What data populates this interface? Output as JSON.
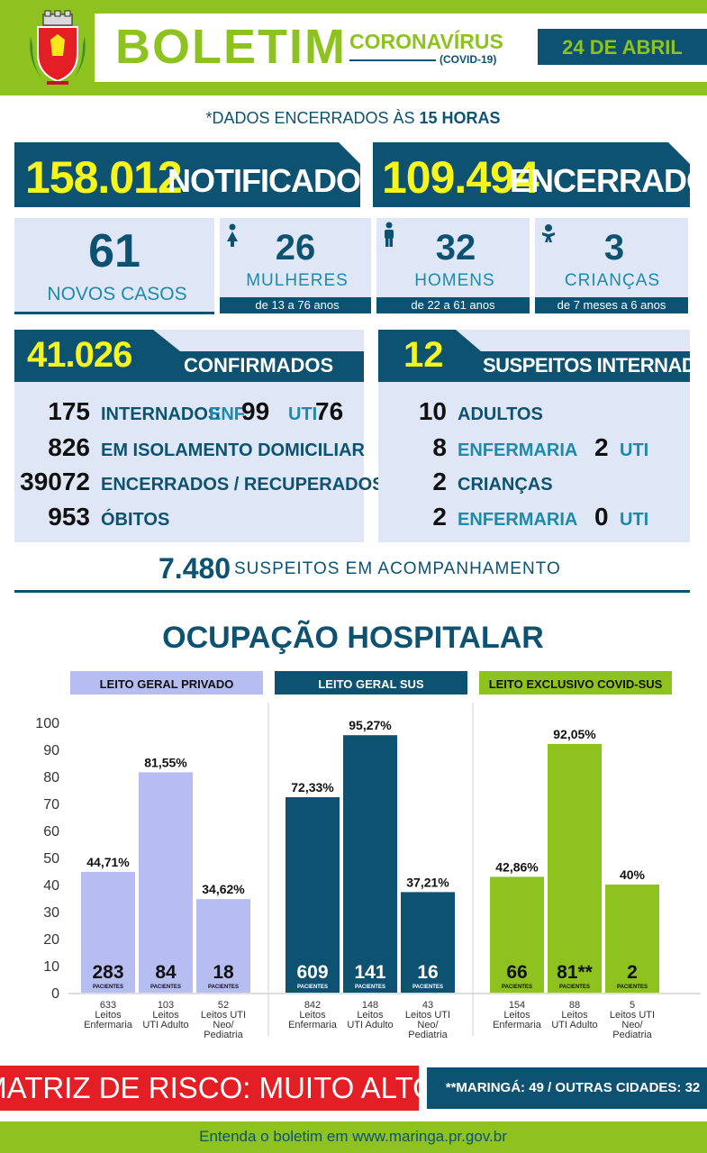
{
  "colors": {
    "green": "#8dc21f",
    "navy": "#0d5271",
    "yellow": "#f8f51c",
    "red": "#e31e24",
    "lavender": "#b6bdf0"
  },
  "header": {
    "title": "BOLETIM",
    "subtitle": "CORONAVÍRUS",
    "subtitle2": "(COVID-19)",
    "date": "24 DE ABRIL"
  },
  "note": {
    "prefix": "*DADOS ENCERRADOS ÀS ",
    "hour": "15 HORAS"
  },
  "totals": {
    "notified_value": "158.012",
    "notified_label": "NOTIFICADOS",
    "closed_value": "109.494",
    "closed_label": "ENCERRADOS"
  },
  "new_cases": {
    "value": "61",
    "label": "NOVOS CASOS"
  },
  "demographics": [
    {
      "icon": "woman-icon",
      "value": "26",
      "label": "MULHERES",
      "range": "de 13 a 76 anos"
    },
    {
      "icon": "man-icon",
      "value": "32",
      "label": "HOMENS",
      "range": "de 22 a 61 anos"
    },
    {
      "icon": "baby-icon",
      "value": "3",
      "label": "CRIANÇAS",
      "range": "de 7 meses a 6 anos"
    }
  ],
  "confirmed": {
    "value": "41.026",
    "label": "CONFIRMADOS",
    "rows": {
      "internados": {
        "value": "175",
        "label": "INTERNADOS",
        "enf_label": "ENF.",
        "enf_value": "99",
        "uti_label": "UTI",
        "uti_value": "76"
      },
      "isolamento": {
        "value": "826",
        "label": "EM ISOLAMENTO DOMICILIAR"
      },
      "recuperados": {
        "value": "39072",
        "label": "ENCERRADOS / RECUPERADOS"
      },
      "obitos": {
        "value": "953",
        "label": "ÓBITOS"
      }
    }
  },
  "suspects": {
    "value": "12",
    "label": "SUSPEITOS INTERNADOS",
    "adultos": {
      "value": "10",
      "label": "ADULTOS"
    },
    "adultos_split": {
      "enf_value": "8",
      "enf_label": "ENFERMARIA",
      "uti_value": "2",
      "uti_label": "UTI"
    },
    "criancas": {
      "value": "2",
      "label": "CRIANÇAS"
    },
    "criancas_split": {
      "enf_value": "2",
      "enf_label": "ENFERMARIA",
      "uti_value": "0",
      "uti_label": "UTI"
    }
  },
  "monitoring": {
    "value": "7.480",
    "label": "SUSPEITOS EM ACOMPANHAMENTO"
  },
  "chart_data": {
    "type": "bar",
    "title": "OCUPAÇÃO HOSPITALAR",
    "ylim": [
      0,
      100
    ],
    "yticks": [
      0,
      10,
      20,
      30,
      40,
      50,
      60,
      70,
      80,
      90,
      100
    ],
    "patients_unit": "PACIENTES",
    "groups": [
      {
        "name": "LEITO GERAL PRIVADO",
        "color": "#b6bdf0",
        "bars": [
          {
            "value": 44.71,
            "label": "44,71%",
            "patients": "283",
            "beds": "633",
            "category": "Leitos\nEnfermaria"
          },
          {
            "value": 81.55,
            "label": "81,55%",
            "patients": "84",
            "beds": "103",
            "category": "Leitos\nUTI Adulto"
          },
          {
            "value": 34.62,
            "label": "34,62%",
            "patients": "18",
            "beds": "52",
            "category": "Leitos UTI\nNeo/\nPediatria"
          }
        ]
      },
      {
        "name": "LEITO GERAL SUS",
        "color": "#0d5271",
        "bars": [
          {
            "value": 72.33,
            "label": "72,33%",
            "patients": "609",
            "beds": "842",
            "category": "Leitos\nEnfermaria"
          },
          {
            "value": 95.27,
            "label": "95,27%",
            "patients": "141",
            "beds": "148",
            "category": "Leitos\nUTI Adulto"
          },
          {
            "value": 37.21,
            "label": "37,21%",
            "patients": "16",
            "beds": "43",
            "category": "Leitos UTI\nNeo/\nPediatria"
          }
        ]
      },
      {
        "name": "LEITO EXCLUSIVO COVID-SUS",
        "color": "#8dc21f",
        "bars": [
          {
            "value": 42.86,
            "label": "42,86%",
            "patients": "66",
            "beds": "154",
            "category": "Leitos\nEnfermaria"
          },
          {
            "value": 92.05,
            "label": "92,05%",
            "patients": "81**",
            "beds": "88",
            "category": "Leitos\nUTI Adulto"
          },
          {
            "value": 40,
            "label": "40%",
            "patients": "2",
            "beds": "5",
            "category": "Leitos UTI\nNeo/\nPediatria"
          }
        ]
      }
    ]
  },
  "risk": {
    "label": "MATRIZ DE RISCO: MUITO ALTO",
    "note": "**MARINGÁ: 49 / OUTRAS CIDADES: 32"
  },
  "footer": {
    "text": "Entenda o boletim em www.maringa.pr.gov.br"
  }
}
